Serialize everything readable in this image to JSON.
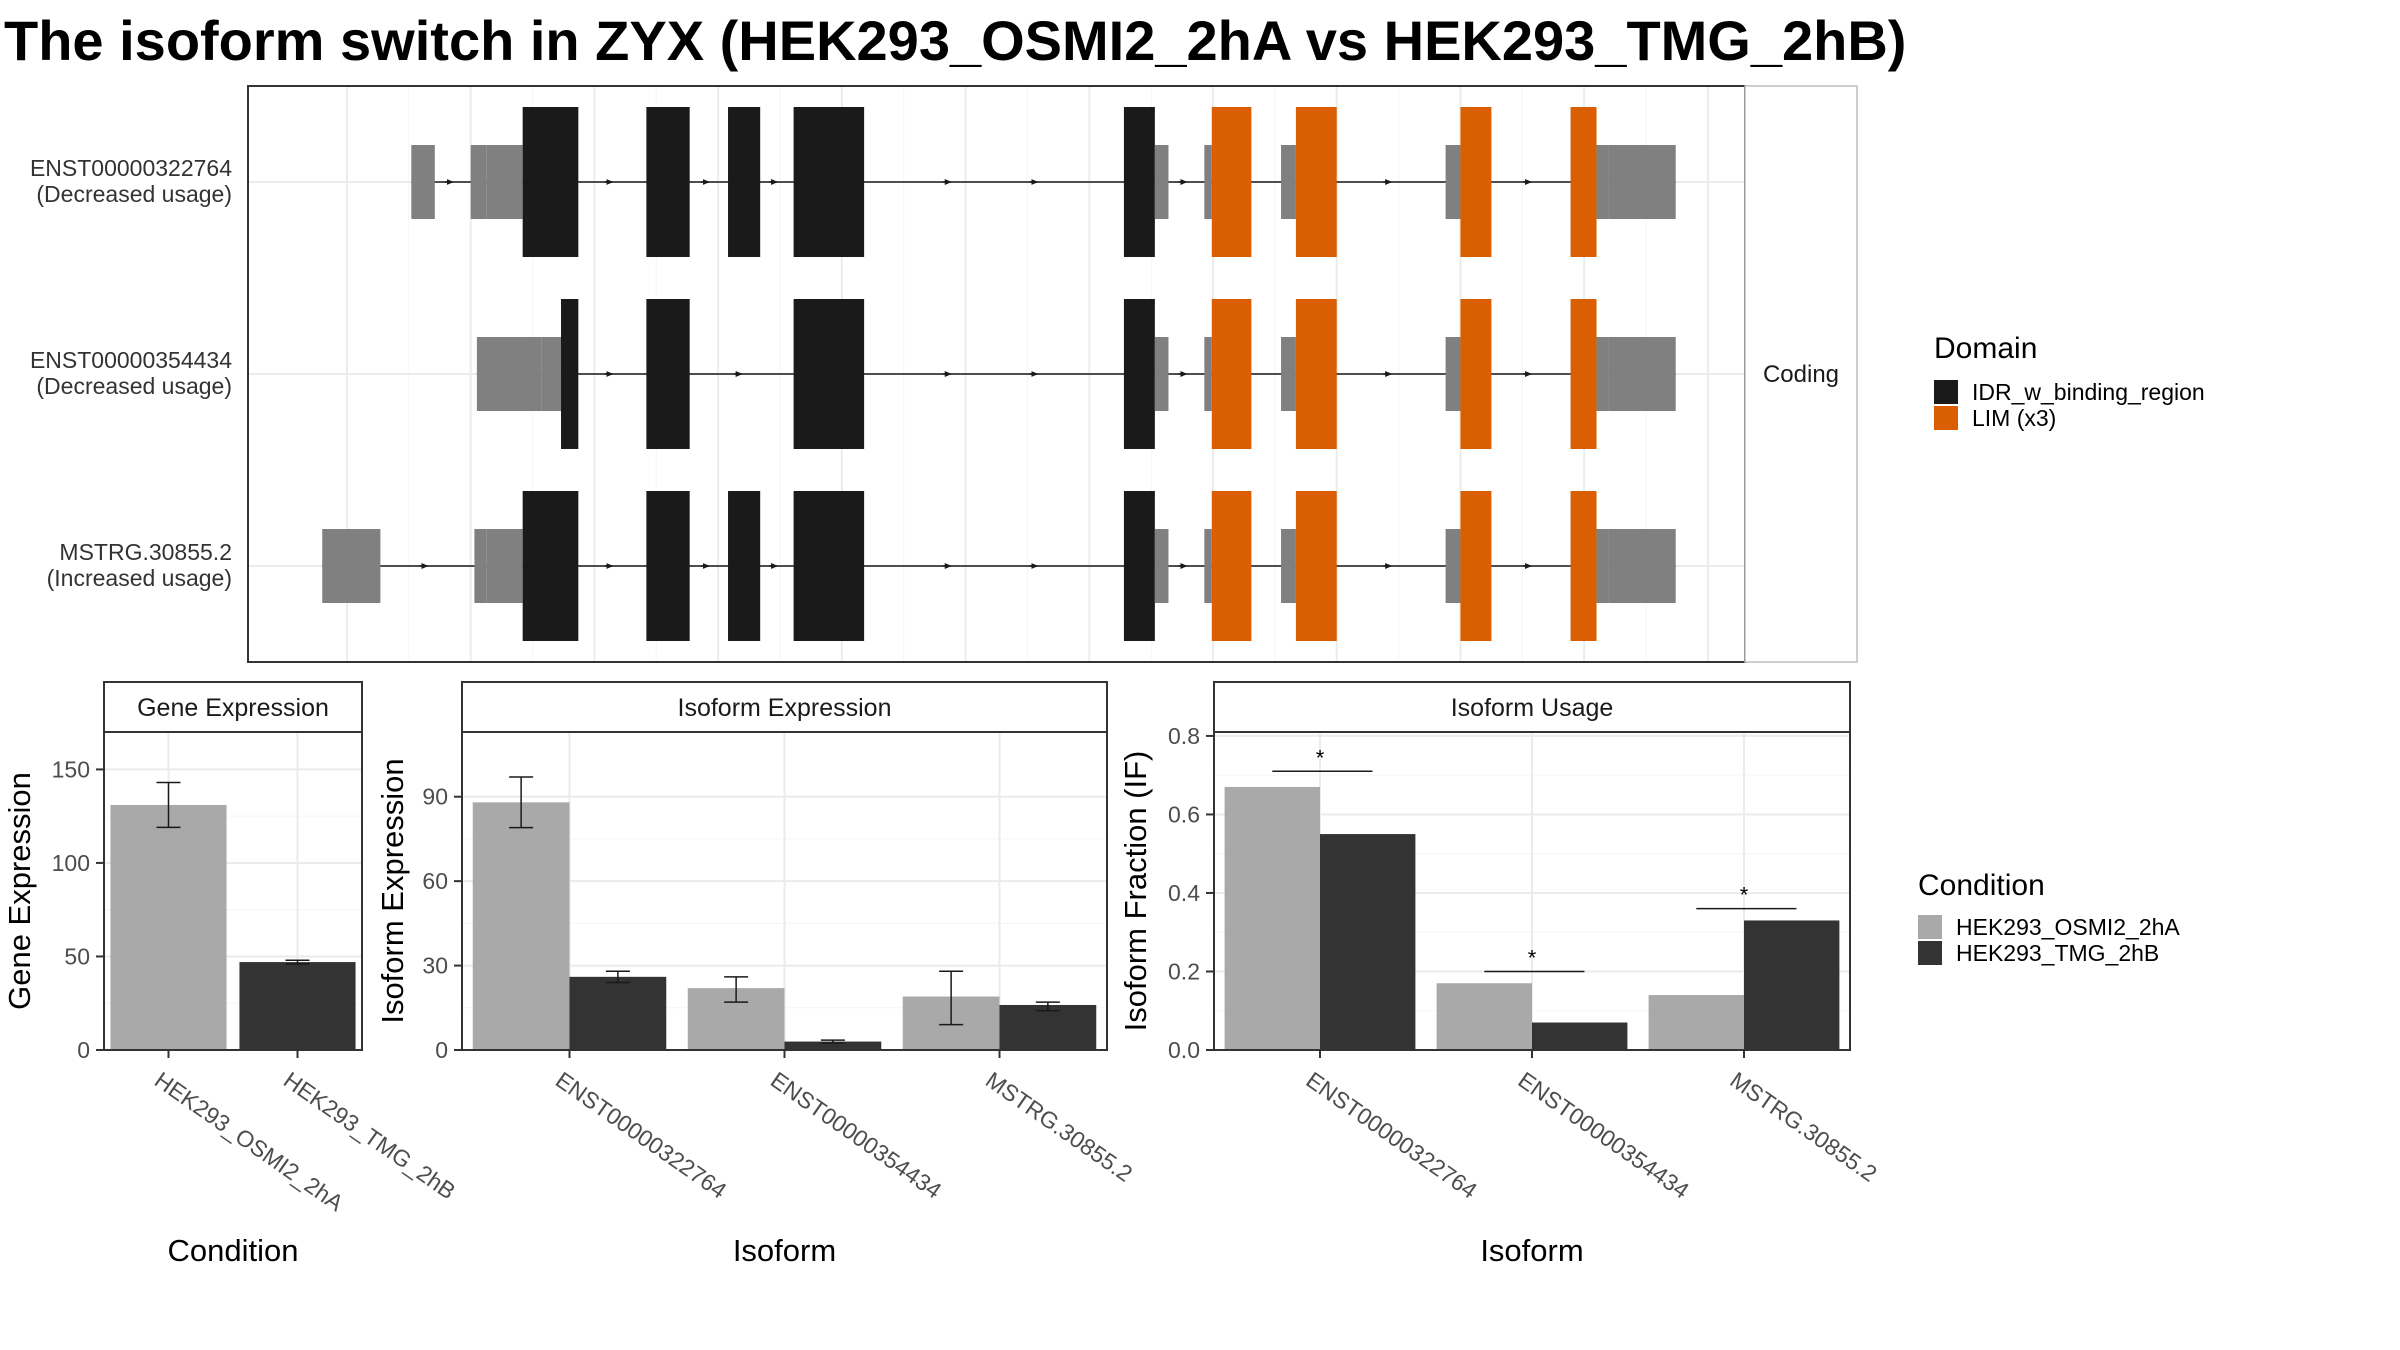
{
  "title": "The isoform switch in ZYX (HEK293_OSMI2_2hA vs HEK293_TMG_2hB)",
  "colors": {
    "idr": "#1a1a1a",
    "lim": "#d95f02",
    "utr": "#808080",
    "condition_a": "#a9a9a9",
    "condition_b": "#333333"
  },
  "chart_data": [
    {
      "type": "gene-structure",
      "facet_label": "Coding",
      "transcripts": [
        {
          "id": "ENST00000322764",
          "usage": "(Decreased usage)",
          "segments": [
            {
              "start": 1.52,
              "end": 1.71,
              "kind": "utr"
            },
            {
              "start": 2.0,
              "end": 2.13,
              "kind": "utr"
            },
            {
              "start": 2.13,
              "end": 2.42,
              "kind": "utr"
            },
            {
              "start": 2.42,
              "end": 2.87,
              "kind": "idr"
            },
            {
              "start": 3.42,
              "end": 3.77,
              "kind": "idr"
            },
            {
              "start": 4.08,
              "end": 4.34,
              "kind": "idr"
            },
            {
              "start": 4.61,
              "end": 5.18,
              "kind": "idr"
            },
            {
              "start": 7.28,
              "end": 7.53,
              "kind": "idr"
            },
            {
              "start": 7.53,
              "end": 7.64,
              "kind": "utr"
            },
            {
              "start": 7.93,
              "end": 7.99,
              "kind": "utr"
            },
            {
              "start": 7.99,
              "end": 8.31,
              "kind": "lim"
            },
            {
              "start": 8.55,
              "end": 8.67,
              "kind": "utr"
            },
            {
              "start": 8.67,
              "end": 9.0,
              "kind": "lim"
            },
            {
              "start": 9.88,
              "end": 10.0,
              "kind": "utr"
            },
            {
              "start": 10.0,
              "end": 10.25,
              "kind": "lim"
            },
            {
              "start": 10.89,
              "end": 11.1,
              "kind": "lim"
            },
            {
              "start": 11.1,
              "end": 11.2,
              "kind": "utr"
            },
            {
              "start": 11.2,
              "end": 11.74,
              "kind": "utr"
            }
          ]
        },
        {
          "id": "ENST00000354434",
          "usage": "(Decreased usage)",
          "segments": [
            {
              "start": 2.05,
              "end": 2.57,
              "kind": "utr"
            },
            {
              "start": 2.57,
              "end": 2.73,
              "kind": "utr"
            },
            {
              "start": 2.73,
              "end": 2.87,
              "kind": "idr"
            },
            {
              "start": 3.42,
              "end": 3.77,
              "kind": "idr"
            },
            {
              "start": 4.61,
              "end": 5.18,
              "kind": "idr"
            },
            {
              "start": 7.28,
              "end": 7.53,
              "kind": "idr"
            },
            {
              "start": 7.53,
              "end": 7.64,
              "kind": "utr"
            },
            {
              "start": 7.93,
              "end": 7.99,
              "kind": "utr"
            },
            {
              "start": 7.99,
              "end": 8.31,
              "kind": "lim"
            },
            {
              "start": 8.55,
              "end": 8.67,
              "kind": "utr"
            },
            {
              "start": 8.67,
              "end": 9.0,
              "kind": "lim"
            },
            {
              "start": 9.88,
              "end": 10.0,
              "kind": "utr"
            },
            {
              "start": 10.0,
              "end": 10.25,
              "kind": "lim"
            },
            {
              "start": 10.89,
              "end": 11.1,
              "kind": "lim"
            },
            {
              "start": 11.1,
              "end": 11.2,
              "kind": "utr"
            },
            {
              "start": 11.2,
              "end": 11.74,
              "kind": "utr"
            }
          ]
        },
        {
          "id": "MSTRG.30855.2",
          "usage": "(Increased usage)",
          "segments": [
            {
              "start": 0.8,
              "end": 1.27,
              "kind": "utr"
            },
            {
              "start": 2.03,
              "end": 2.13,
              "kind": "utr"
            },
            {
              "start": 2.13,
              "end": 2.42,
              "kind": "utr"
            },
            {
              "start": 2.42,
              "end": 2.87,
              "kind": "idr"
            },
            {
              "start": 3.42,
              "end": 3.77,
              "kind": "idr"
            },
            {
              "start": 4.08,
              "end": 4.34,
              "kind": "idr"
            },
            {
              "start": 4.61,
              "end": 5.18,
              "kind": "idr"
            },
            {
              "start": 7.28,
              "end": 7.53,
              "kind": "idr"
            },
            {
              "start": 7.53,
              "end": 7.64,
              "kind": "utr"
            },
            {
              "start": 7.93,
              "end": 7.99,
              "kind": "utr"
            },
            {
              "start": 7.99,
              "end": 8.31,
              "kind": "lim"
            },
            {
              "start": 8.55,
              "end": 8.67,
              "kind": "utr"
            },
            {
              "start": 8.67,
              "end": 9.0,
              "kind": "lim"
            },
            {
              "start": 9.88,
              "end": 10.0,
              "kind": "utr"
            },
            {
              "start": 10.0,
              "end": 10.25,
              "kind": "lim"
            },
            {
              "start": 10.89,
              "end": 11.1,
              "kind": "lim"
            },
            {
              "start": 11.1,
              "end": 11.2,
              "kind": "utr"
            },
            {
              "start": 11.2,
              "end": 11.74,
              "kind": "utr"
            }
          ]
        }
      ],
      "legend": {
        "title": "Domain",
        "entries": [
          {
            "label": "IDR_w_binding_region",
            "kind": "idr"
          },
          {
            "label": "LIM (x3)",
            "kind": "lim"
          }
        ]
      }
    },
    {
      "type": "bar",
      "facet_label": "Gene Expression",
      "xlabel": "Condition",
      "ylabel": "Gene Expression",
      "ylim": [
        0,
        170
      ],
      "yticks": [
        0,
        50,
        100,
        150
      ],
      "categories": [
        "HEK293_OSMI2_2hA",
        "HEK293_TMG_2hB"
      ],
      "values": [
        131,
        47
      ],
      "errors": [
        [
          119,
          143
        ],
        [
          46,
          48
        ]
      ]
    },
    {
      "type": "bar",
      "facet_label": "Isoform Expression",
      "xlabel": "Isoform",
      "ylabel": "Isoform Expression",
      "ylim": [
        0,
        113
      ],
      "yticks": [
        0,
        30,
        60,
        90
      ],
      "categories": [
        "ENST00000322764",
        "ENST00000354434",
        "MSTRG.30855.2"
      ],
      "series": [
        {
          "name": "HEK293_OSMI2_2hA",
          "values": [
            88,
            22,
            19
          ],
          "errors": [
            [
              79,
              97
            ],
            [
              17,
              26
            ],
            [
              9,
              28
            ]
          ]
        },
        {
          "name": "HEK293_TMG_2hB",
          "values": [
            26,
            3,
            16
          ],
          "errors": [
            [
              24,
              28
            ],
            [
              2.5,
              3.5
            ],
            [
              14,
              17
            ]
          ]
        }
      ]
    },
    {
      "type": "bar",
      "facet_label": "Isoform Usage",
      "xlabel": "Isoform",
      "ylabel": "Isoform Fraction (IF)",
      "ylim": [
        0,
        0.81
      ],
      "yticks": [
        "0.0",
        "0.2",
        "0.4",
        "0.6",
        "0.8"
      ],
      "categories": [
        "ENST00000322764",
        "ENST00000354434",
        "MSTRG.30855.2"
      ],
      "series": [
        {
          "name": "HEK293_OSMI2_2hA",
          "values": [
            0.67,
            0.17,
            0.14
          ]
        },
        {
          "name": "HEK293_TMG_2hB",
          "values": [
            0.55,
            0.07,
            0.33
          ]
        }
      ],
      "significance": [
        {
          "label": "*",
          "y": 0.71
        },
        {
          "label": "*",
          "y": 0.2
        },
        {
          "label": "*",
          "y": 0.36
        }
      ]
    }
  ],
  "condition_legend": {
    "title": "Condition",
    "entries": [
      {
        "label": "HEK293_OSMI2_2hA",
        "key": "condition_a"
      },
      {
        "label": "HEK293_TMG_2hB",
        "key": "condition_b"
      }
    ]
  }
}
